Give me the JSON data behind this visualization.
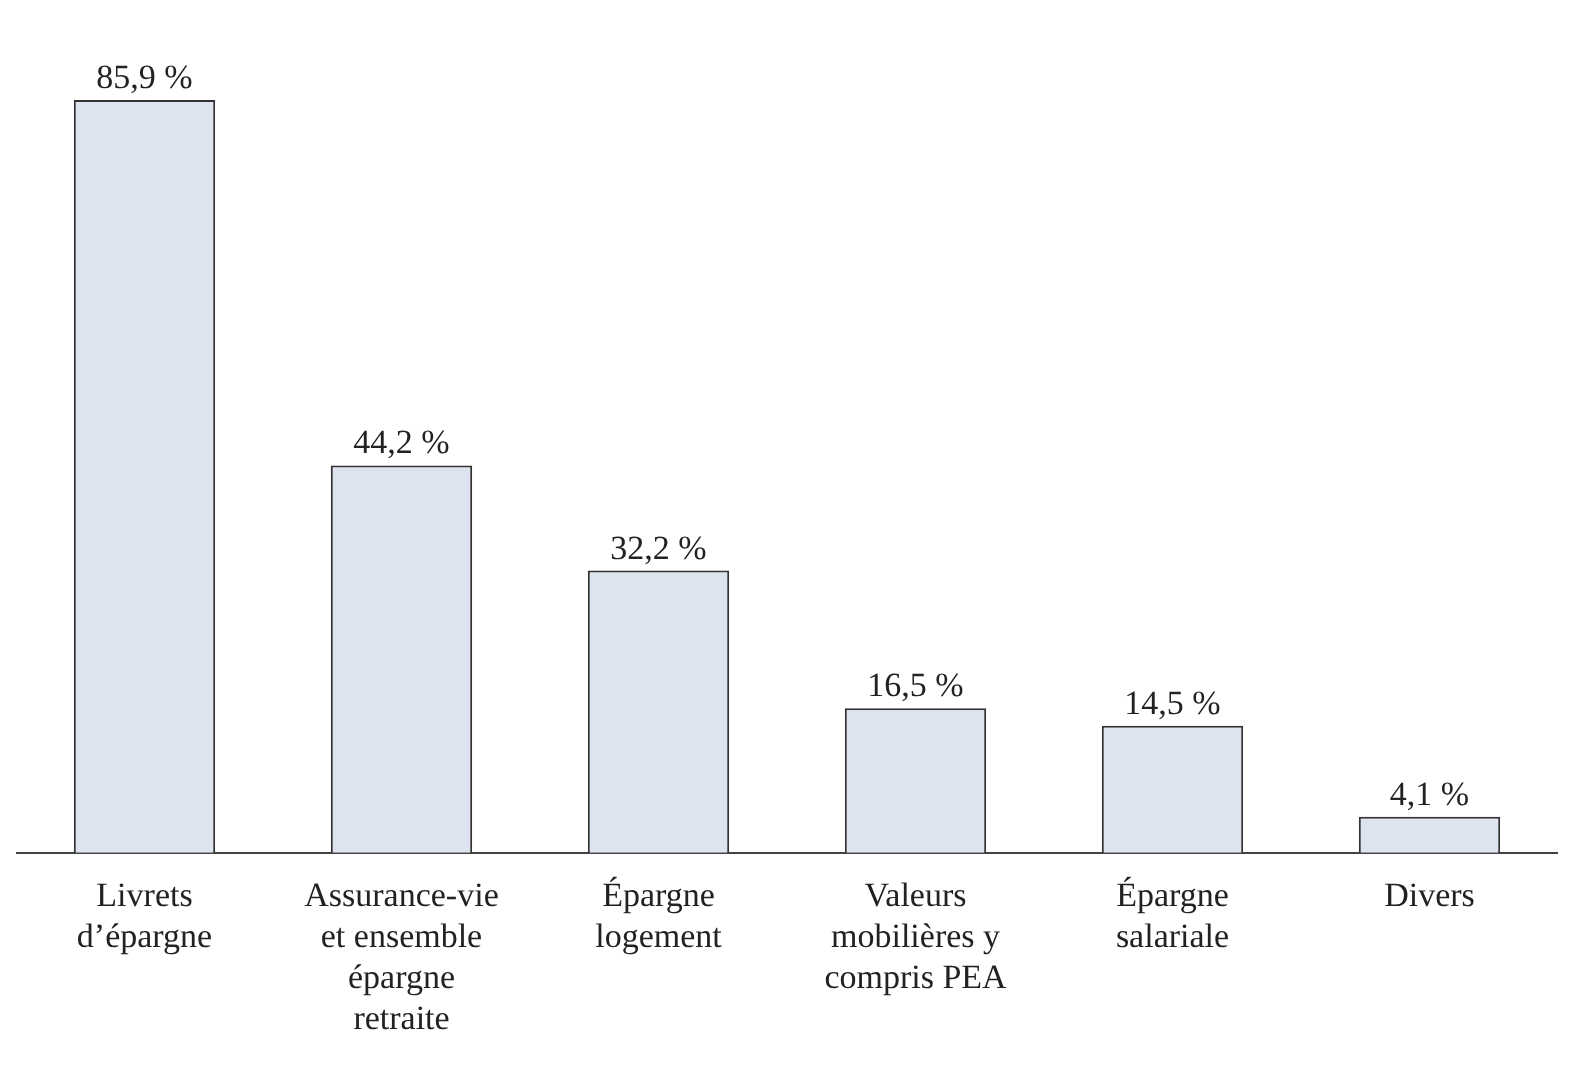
{
  "chart_data": {
    "type": "bar",
    "categories": [
      "Livrets d’épargne",
      "Assurance-vie et ensemble épargne retraite",
      "Épargne logement",
      "Valeurs mobilières y compris PEA",
      "Épargne salariale",
      "Divers"
    ],
    "values": [
      85.9,
      44.2,
      32.2,
      16.5,
      14.5,
      4.1
    ],
    "value_labels": [
      "85,9 %",
      "44,2 %",
      "32,2 %",
      "16,5 %",
      "14,5 %",
      "4,1 %"
    ],
    "color": "#dde4ef",
    "tick_labels": "x",
    "grid": false,
    "legend": false
  }
}
